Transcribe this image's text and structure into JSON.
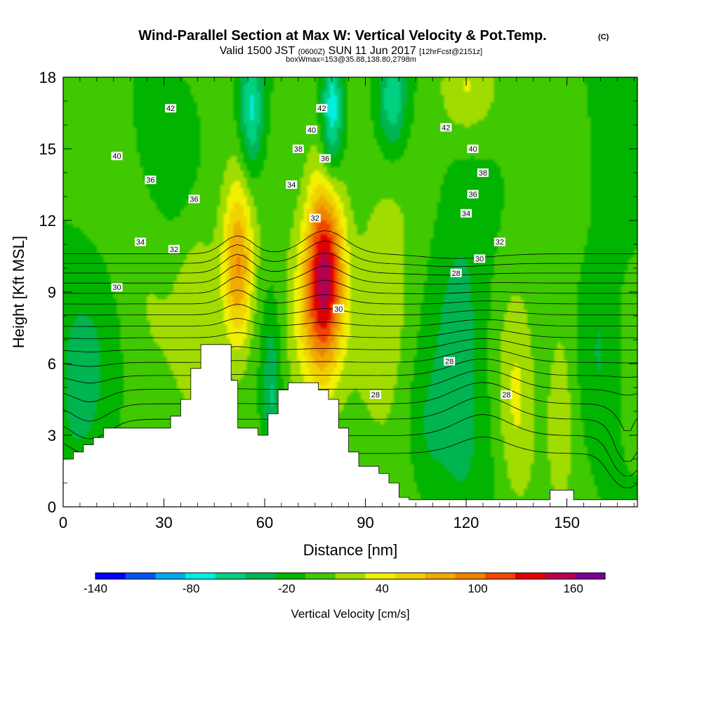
{
  "title": {
    "main": "Wind-Parallel Section at Max W: Vertical Velocity & Pot.Temp.",
    "main_mark": "(C)",
    "valid_a": "Valid 1500 JST",
    "valid_b": "(0600Z)",
    "valid_c": "SUN 11 Jun 2017",
    "valid_d": "[12hrFcst@2151z]",
    "box": "boxWmax=153@35.88,138.80,2798m"
  },
  "chart_data": {
    "type": "heatmap",
    "xlabel": "Distance [nm]",
    "ylabel": "Height [Kft MSL]",
    "xlim": [
      0,
      171
    ],
    "ylim": [
      0,
      18
    ],
    "x_ticks": [
      0,
      30,
      60,
      90,
      120,
      150
    ],
    "y_ticks": [
      0,
      3,
      6,
      9,
      12,
      15,
      18
    ],
    "grid": false,
    "terrain_kft": {
      "x": [
        0,
        3,
        6,
        9,
        12,
        26,
        32,
        35,
        38,
        41,
        44,
        50,
        52,
        55,
        58,
        61,
        64,
        67,
        70,
        73,
        76,
        79,
        82,
        85,
        88,
        91,
        94,
        97,
        100,
        103,
        106,
        145,
        152,
        171
      ],
      "y": [
        2.0,
        2.3,
        2.6,
        2.9,
        3.3,
        3.3,
        3.8,
        4.5,
        5.8,
        6.8,
        6.8,
        5.3,
        3.3,
        3.3,
        3.0,
        3.9,
        4.9,
        5.2,
        5.2,
        5.2,
        4.9,
        4.5,
        3.3,
        2.3,
        1.7,
        1.7,
        1.4,
        1.0,
        0.4,
        0.3,
        0.3,
        0.7,
        0.3,
        0.3
      ]
    },
    "vertical_velocity_features": [
      {
        "x": 52,
        "y": 10.0,
        "sx": 3.2,
        "sy": 2.6,
        "w": 95
      },
      {
        "x": 78,
        "y": 10.0,
        "sx": 4.0,
        "sy": 2.9,
        "w": 150
      },
      {
        "x": 73,
        "y": 8.0,
        "sx": 5.0,
        "sy": 2.5,
        "w": 40
      },
      {
        "x": 40,
        "y": 8.0,
        "sx": 4.5,
        "sy": 3.0,
        "w": 30
      },
      {
        "x": 95,
        "y": 8.0,
        "sx": 6.0,
        "sy": 3.5,
        "w": 35
      },
      {
        "x": 135,
        "y": 4.5,
        "sx": 4.0,
        "sy": 3.2,
        "w": 38
      },
      {
        "x": 148,
        "y": 4.5,
        "sx": 3.0,
        "sy": 2.8,
        "w": 30
      },
      {
        "x": 120,
        "y": 17.5,
        "sx": 6.0,
        "sy": 1.4,
        "w": 35
      },
      {
        "x": 25,
        "y": 9.5,
        "sx": 6.0,
        "sy": 4.0,
        "w": 15
      },
      {
        "x": 62,
        "y": 4.5,
        "sx": 1.8,
        "sy": 2.5,
        "w": -45
      },
      {
        "x": 56,
        "y": 16.5,
        "sx": 2.5,
        "sy": 1.8,
        "w": -70
      },
      {
        "x": 80,
        "y": 16.5,
        "sx": 2.3,
        "sy": 2.0,
        "w": -85
      },
      {
        "x": 98,
        "y": 17.0,
        "sx": 3.0,
        "sy": 1.5,
        "w": -60
      },
      {
        "x": 118,
        "y": 6.0,
        "sx": 6.0,
        "sy": 4.5,
        "w": -40
      },
      {
        "x": 5,
        "y": 5.0,
        "sx": 7.0,
        "sy": 4.0,
        "w": -30
      },
      {
        "x": 160,
        "y": 6.5,
        "sx": 4.0,
        "sy": 3.5,
        "w": -25
      },
      {
        "x": 30,
        "y": 15.5,
        "sx": 6.0,
        "sy": 2.5,
        "w": -25
      },
      {
        "x": 165,
        "y": 16.0,
        "sx": 5.0,
        "sy": 3.0,
        "w": -20
      },
      {
        "x": 108,
        "y": 3.0,
        "sx": 4.0,
        "sy": 2.0,
        "w": -20
      }
    ],
    "theta_contour_levels_c": [
      28,
      29,
      30,
      31,
      32,
      33,
      34,
      35,
      36,
      37,
      38,
      39,
      40,
      41,
      42,
      43,
      44
    ],
    "theta_contour_labels": [
      {
        "text": "42",
        "x": 32,
        "y": 16.7
      },
      {
        "text": "40",
        "x": 16,
        "y": 14.7
      },
      {
        "text": "36",
        "x": 26,
        "y": 13.7
      },
      {
        "text": "36",
        "x": 39,
        "y": 12.9
      },
      {
        "text": "34",
        "x": 23,
        "y": 11.1
      },
      {
        "text": "32",
        "x": 33,
        "y": 10.8
      },
      {
        "text": "30",
        "x": 16,
        "y": 9.2
      },
      {
        "text": "42",
        "x": 77,
        "y": 16.7
      },
      {
        "text": "40",
        "x": 74,
        "y": 15.8
      },
      {
        "text": "38",
        "x": 70,
        "y": 15.0
      },
      {
        "text": "36",
        "x": 78,
        "y": 14.6
      },
      {
        "text": "34",
        "x": 68,
        "y": 13.5
      },
      {
        "text": "32",
        "x": 75,
        "y": 12.1
      },
      {
        "text": "30",
        "x": 82,
        "y": 8.3
      },
      {
        "text": "28",
        "x": 93,
        "y": 4.7
      },
      {
        "text": "42",
        "x": 114,
        "y": 15.9
      },
      {
        "text": "40",
        "x": 122,
        "y": 15.0
      },
      {
        "text": "38",
        "x": 125,
        "y": 14.0
      },
      {
        "text": "36",
        "x": 122,
        "y": 13.1
      },
      {
        "text": "34",
        "x": 120,
        "y": 12.3
      },
      {
        "text": "32",
        "x": 130,
        "y": 11.1
      },
      {
        "text": "30",
        "x": 124,
        "y": 10.4
      },
      {
        "text": "28",
        "x": 117,
        "y": 9.8
      },
      {
        "text": "28",
        "x": 115,
        "y": 6.1
      },
      {
        "text": "28",
        "x": 132,
        "y": 4.7
      }
    ],
    "colorbar": {
      "label": "Vertical Velocity [cm/s]",
      "boundaries": [
        -140,
        -120,
        -100,
        -80,
        -60,
        -40,
        -20,
        0,
        20,
        40,
        60,
        80,
        100,
        120,
        140,
        160,
        180
      ],
      "colors": [
        "#0000ff",
        "#0055f0",
        "#00aaf0",
        "#00f0e0",
        "#00d080",
        "#00b450",
        "#00b400",
        "#40c800",
        "#a0dc00",
        "#f0f000",
        "#f0d200",
        "#f0aa00",
        "#f08200",
        "#f04600",
        "#e00000",
        "#b40050",
        "#780096"
      ],
      "tick_labels": [
        "-140",
        "-80",
        "-20",
        "40",
        "100",
        "160"
      ],
      "tick_values": [
        -140,
        -80,
        -20,
        40,
        100,
        160
      ]
    }
  }
}
